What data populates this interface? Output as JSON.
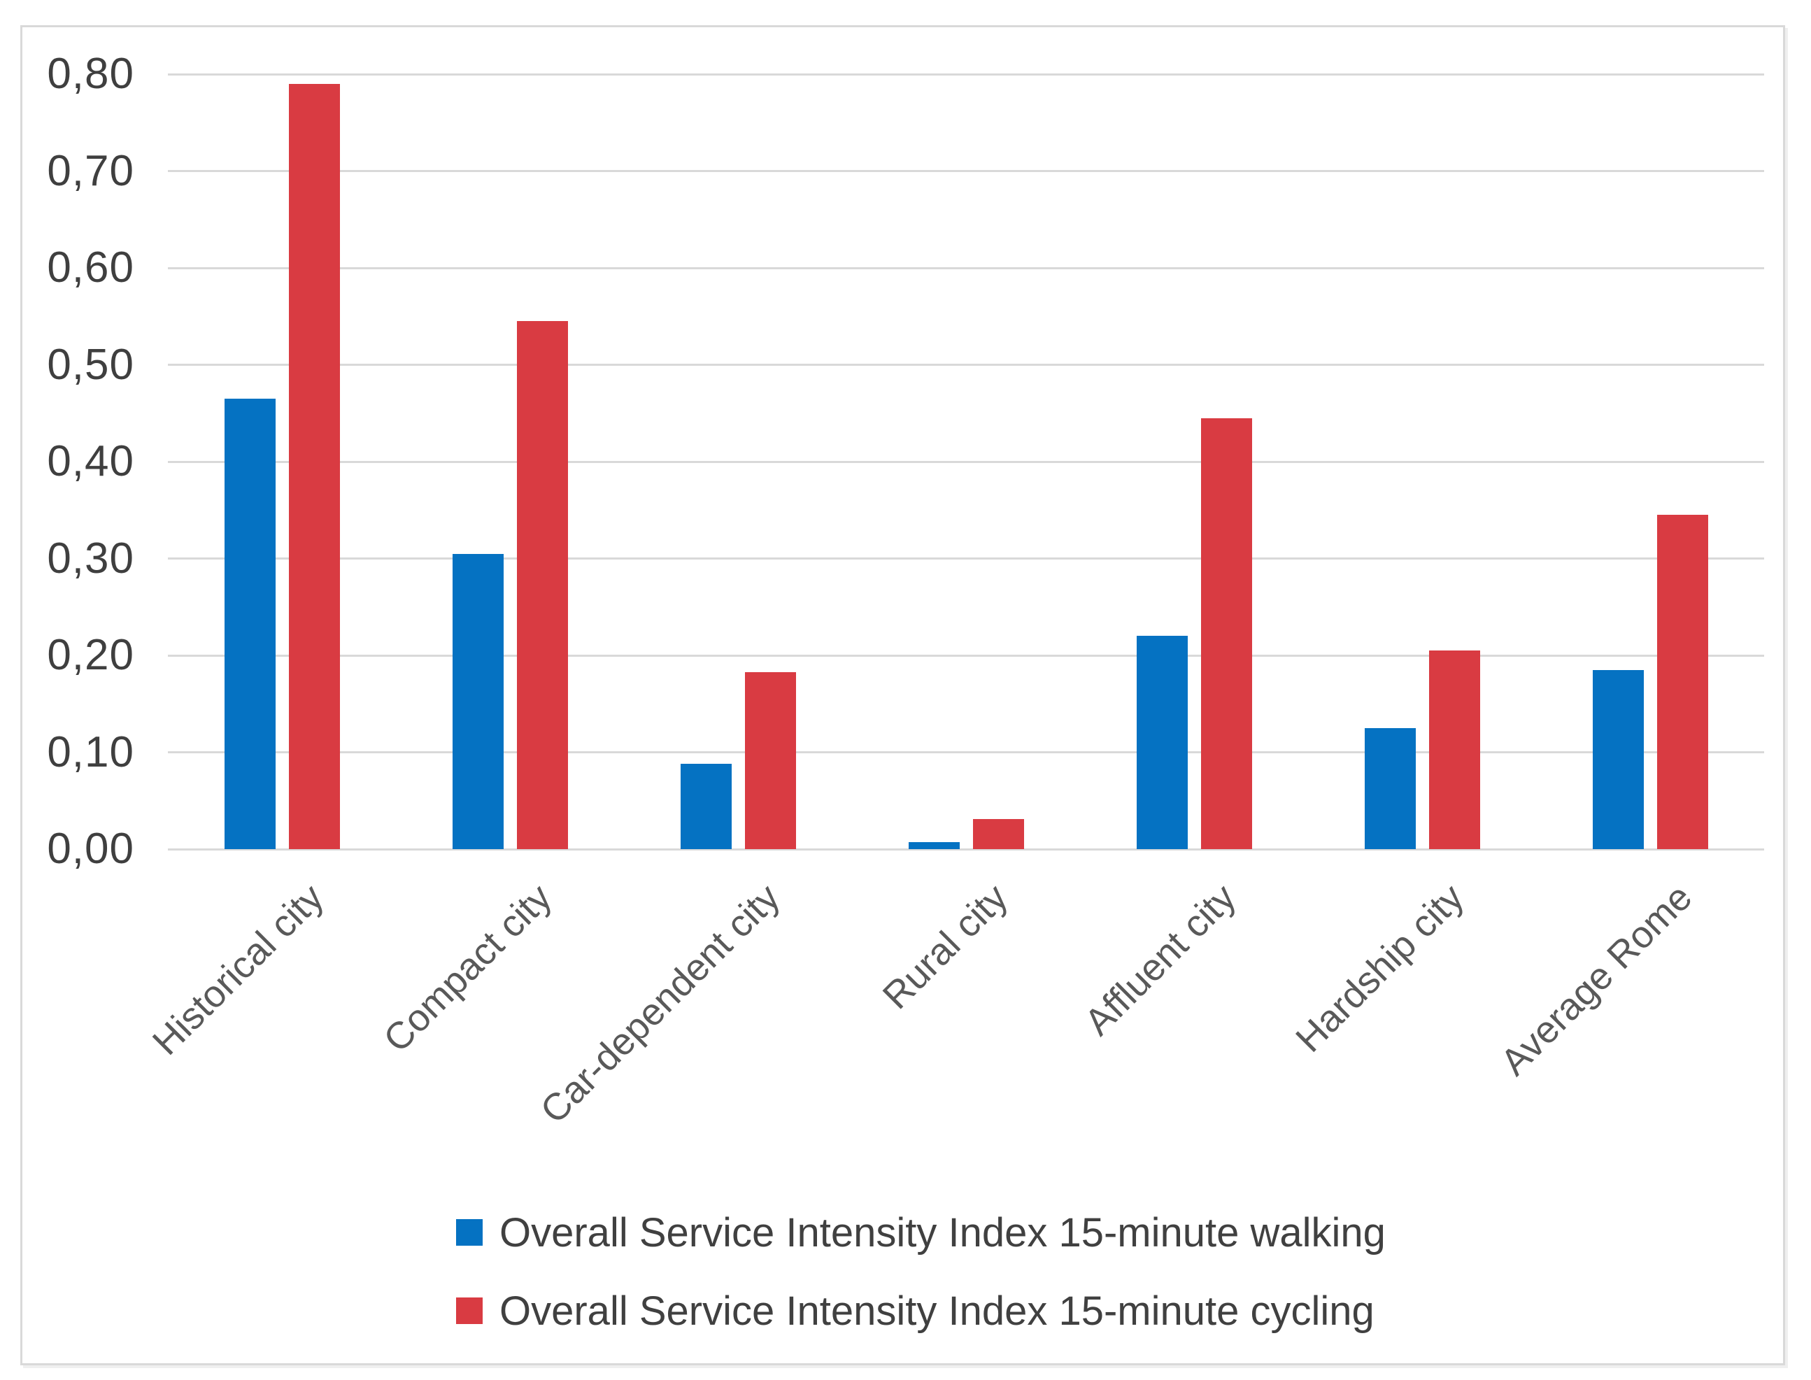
{
  "chart_data": {
    "type": "bar",
    "categories": [
      "Historical city",
      "Compact city",
      "Car-dependent city",
      "Rural city",
      "Affluent city",
      "Hardship city",
      "Average Rome"
    ],
    "series": [
      {
        "name": "Overall Service Intensity Index 15-minute walking",
        "color": "#0572C2",
        "values": [
          0.465,
          0.305,
          0.088,
          0.007,
          0.22,
          0.125,
          0.185
        ]
      },
      {
        "name": "Overall Service Intensity Index 15-minute cycling",
        "color": "#D93B42",
        "values": [
          0.79,
          0.545,
          0.183,
          0.031,
          0.445,
          0.205,
          0.345
        ]
      }
    ],
    "title": "",
    "xlabel": "",
    "ylabel": "",
    "ylim": [
      0,
      0.8
    ],
    "ytick_step": 0.1,
    "ytick_labels": [
      "0,00",
      "0,10",
      "0,20",
      "0,30",
      "0,40",
      "0,50",
      "0,60",
      "0,70",
      "0,80"
    ],
    "decimal_separator": ",",
    "grid": true,
    "gridline_color": "#D9D9D9",
    "frame_border_color": "#D9D9D9",
    "ytick_label_color": "#3F3F3F",
    "xtick_label_color": "#595959",
    "legend_text_color": "#404040",
    "legend_position": "bottom"
  }
}
